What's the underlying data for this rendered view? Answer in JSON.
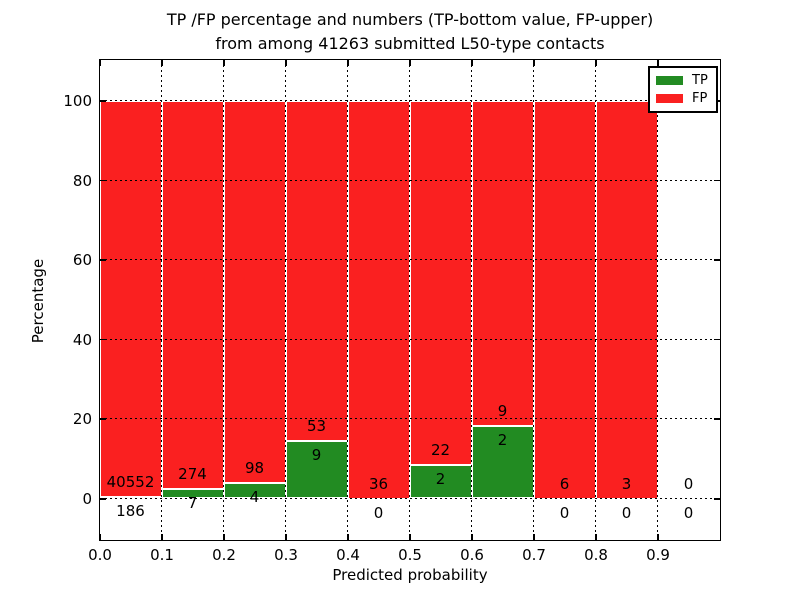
{
  "title": {
    "line1": "TP /FP percentage and numbers (TP-bottom value, FP-upper)",
    "line2": "from among 41263 submitted L50-type contacts"
  },
  "axes": {
    "xlabel": "Predicted probability",
    "ylabel": "Percentage",
    "x_ticks": [
      "0.0",
      "0.1",
      "0.2",
      "0.3",
      "0.4",
      "0.5",
      "0.6",
      "0.7",
      "0.8",
      "0.9"
    ],
    "y_ticks": [
      "0",
      "20",
      "40",
      "60",
      "80",
      "100"
    ]
  },
  "legend": [
    {
      "label": "TP",
      "color": "#228B22"
    },
    {
      "label": "FP",
      "color": "#fa2020"
    }
  ],
  "colors": {
    "tp": "#228B22",
    "fp": "#fa2020",
    "grid": "#000000"
  },
  "chart_data": {
    "type": "bar",
    "stacked": true,
    "title": "TP /FP percentage and numbers (TP-bottom value, FP-upper) from among 41263 submitted L50-type contacts",
    "xlabel": "Predicted probability",
    "ylabel": "Percentage",
    "total_submitted_contacts": 41263,
    "xlim": [
      0.0,
      1.0
    ],
    "ylim": [
      -10.3,
      110.3
    ],
    "grid": true,
    "legend_position": "upper right",
    "bin_edges": [
      0.0,
      0.1,
      0.2,
      0.3,
      0.4,
      0.5,
      0.6,
      0.7,
      0.8,
      0.9,
      1.0
    ],
    "bins_have_bars": [
      true,
      true,
      true,
      true,
      true,
      true,
      true,
      true,
      true,
      false
    ],
    "series": [
      {
        "name": "TP",
        "counts": [
          186,
          7,
          4,
          9,
          0,
          2,
          2,
          0,
          0,
          0
        ],
        "pct": [
          0.46,
          2.49,
          3.92,
          14.52,
          0.0,
          8.33,
          18.18,
          0.0,
          0.0,
          null
        ]
      },
      {
        "name": "FP",
        "counts": [
          40552,
          274,
          98,
          53,
          36,
          22,
          9,
          6,
          3,
          0
        ],
        "pct": [
          99.54,
          97.51,
          96.08,
          85.48,
          100.0,
          91.67,
          81.82,
          100.0,
          100.0,
          null
        ]
      }
    ]
  }
}
